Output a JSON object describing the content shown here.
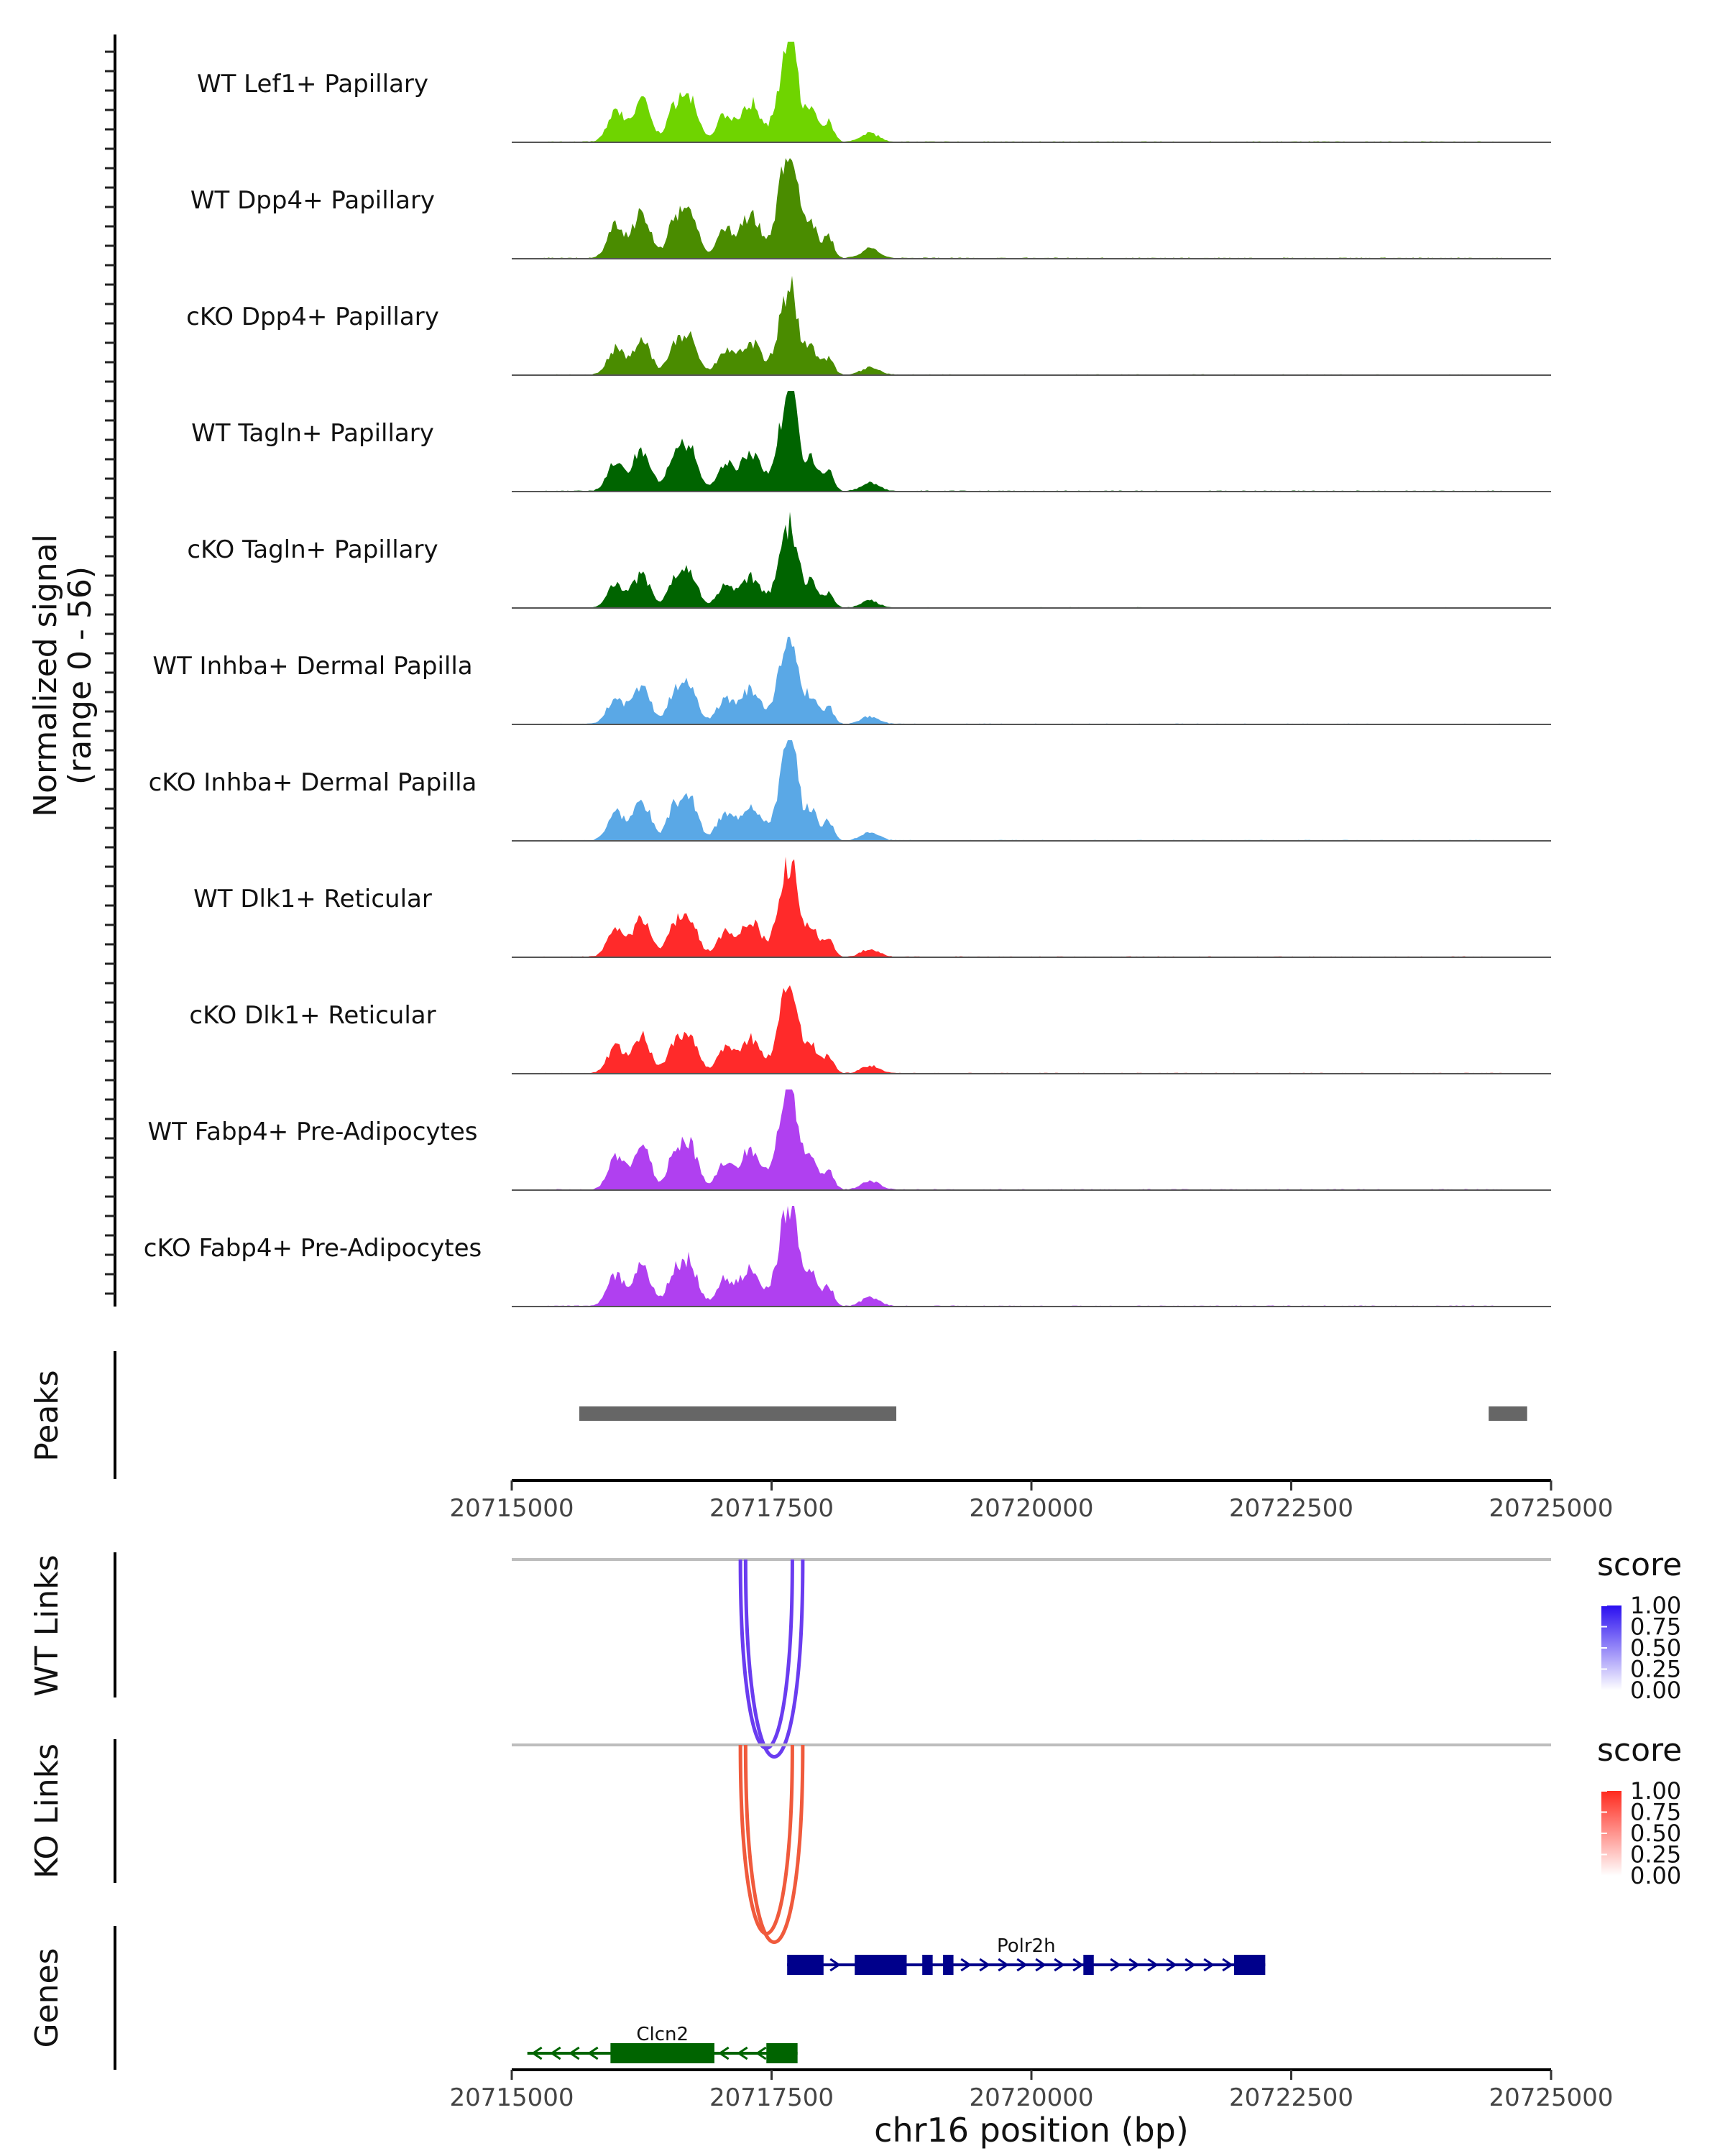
{
  "chart_data": {
    "type": "area",
    "chromosome": "chr16",
    "x_range": [
      20715000,
      20725000
    ],
    "x_ticks": [
      "20715000",
      "20717500",
      "20720000",
      "20722500",
      "20725000"
    ],
    "xlabel": "chr16 position (bp)",
    "coverage": {
      "ylabel_line1": "Normalized signal",
      "ylabel_line2": "(range 0 - 56)",
      "y_range": [
        0,
        56
      ],
      "tracks": [
        {
          "name": "WT Lef1+ Papillary",
          "color": "#6fd400",
          "scale": 0.92,
          "end_peak": 0.28
        },
        {
          "name": "WT Dpp4+ Papillary",
          "color": "#4a8c00",
          "scale": 1.0,
          "end_peak": 0.2
        },
        {
          "name": "cKO Dpp4+ Papillary",
          "color": "#4a8c00",
          "scale": 0.78,
          "end_peak": 0.28
        },
        {
          "name": "WT Tagln+ Papillary",
          "color": "#006400",
          "scale": 0.92,
          "end_peak": 0.22
        },
        {
          "name": "cKO Tagln+ Papillary",
          "color": "#006400",
          "scale": 0.72,
          "end_peak": 0.14
        },
        {
          "name": "WT Inhba+ Dermal Papilla",
          "color": "#5aa8e6",
          "scale": 0.82,
          "end_peak": 0.26
        },
        {
          "name": "cKO Inhba+ Dermal Papilla",
          "color": "#5aa8e6",
          "scale": 0.88,
          "end_peak": 0.05
        },
        {
          "name": "WT Dlk1+ Reticular",
          "color": "#ff2a2a",
          "scale": 0.85,
          "end_peak": 0.12
        },
        {
          "name": "cKO Dlk1+ Reticular",
          "color": "#ff2a2a",
          "scale": 0.82,
          "end_peak": 0.3
        },
        {
          "name": "WT Fabp4+ Pre-Adipocytes",
          "color": "#b040f0",
          "scale": 0.96,
          "end_peak": 0.24
        },
        {
          "name": "cKO Fabp4+ Pre-Adipocytes",
          "color": "#b040f0",
          "scale": 0.92,
          "end_peak": 0.42
        }
      ]
    },
    "peaks": {
      "label": "Peaks",
      "color": "#666666",
      "regions": [
        [
          20715650,
          20718700
        ],
        [
          20724400,
          20724770
        ]
      ]
    },
    "links": [
      {
        "label": "WT Links",
        "legend_title": "score",
        "color": "#6a3cf0",
        "legend_color": "#2a0ff0",
        "arcs": [
          [
            20717200,
            20717700
          ],
          [
            20717250,
            20717800
          ]
        ]
      },
      {
        "label": "KO Links",
        "legend_title": "score",
        "color": "#f05a3c",
        "legend_color": "#ff2a1e",
        "arcs": [
          [
            20717200,
            20717700
          ],
          [
            20717250,
            20717800
          ]
        ]
      }
    ],
    "legend_ticks": [
      "1.00",
      "0.75",
      "0.50",
      "0.25",
      "0.00"
    ],
    "genes": {
      "label": "Genes",
      "items": [
        {
          "name": "Polr2h",
          "strand": "+",
          "color": "#00008b",
          "start": 20717650,
          "end": 20722250,
          "exons": [
            [
              20717650,
              20718000
            ],
            [
              20718300,
              20718800
            ],
            [
              20718950,
              20719050
            ],
            [
              20719150,
              20719250
            ],
            [
              20720500,
              20720600
            ],
            [
              20721950,
              20722250
            ]
          ]
        },
        {
          "name": "Clcn2",
          "strand": "-",
          "color": "#006400",
          "start": 20715150,
          "end": 20717750,
          "exons": [
            [
              20715950,
              20716950
            ],
            [
              20717450,
              20717750
            ]
          ]
        }
      ]
    }
  }
}
